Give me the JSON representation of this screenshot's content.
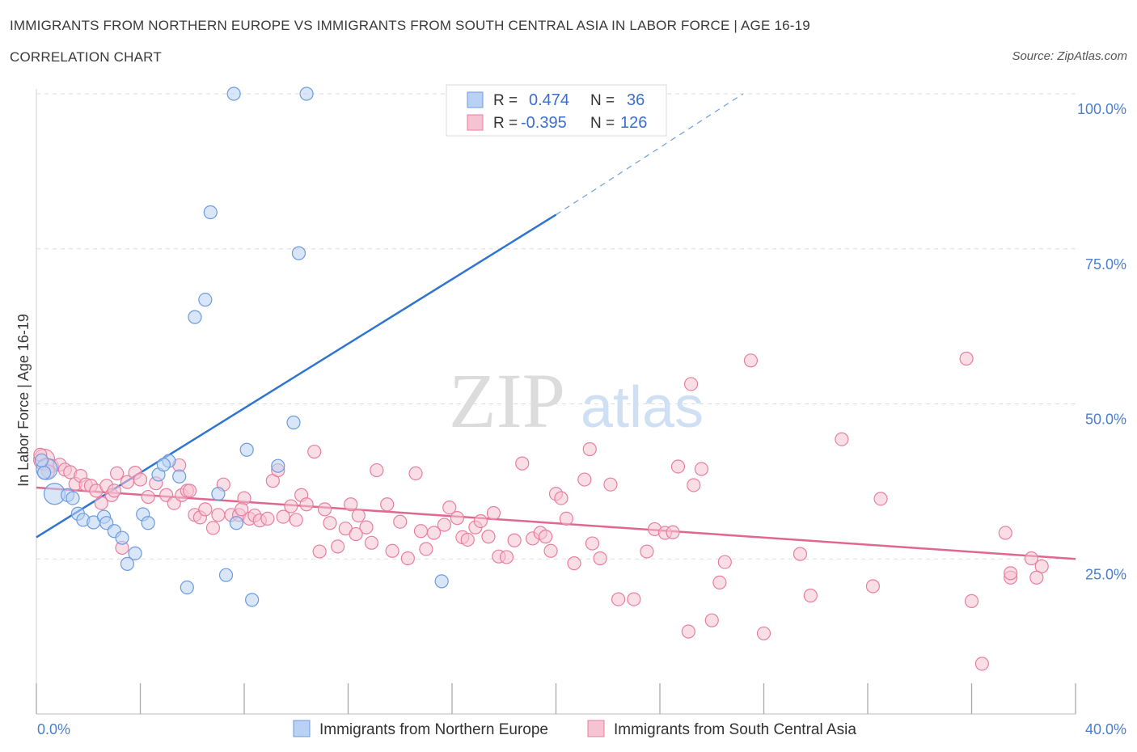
{
  "header": {
    "title": "IMMIGRANTS FROM NORTHERN EUROPE VS IMMIGRANTS FROM SOUTH CENTRAL ASIA IN LABOR FORCE | AGE 16-19",
    "subtitle": "CORRELATION CHART",
    "source": "Source: ZipAtlas.com"
  },
  "watermark": {
    "zip": "ZIP",
    "atlas": "atlas"
  },
  "colors": {
    "blue_fill": "#b9d2f3",
    "blue_stroke": "#6b9be0",
    "blue_line": "#2f74d0",
    "pink_fill": "#f6c3d2",
    "pink_stroke": "#e87ea0",
    "pink_line": "#e0678f",
    "grid": "#dddddd",
    "tick_text": "#4a7fd0"
  },
  "legend": {
    "blue": {
      "r_label": "R =",
      "r_value": "0.474",
      "n_label": "N =",
      "n_value": "36"
    },
    "pink": {
      "r_label": "R =",
      "r_value": "-0.395",
      "n_label": "N =",
      "n_value": "126"
    }
  },
  "chart_data": {
    "type": "scatter",
    "title": "IMMIGRANTS FROM NORTHERN EUROPE VS IMMIGRANTS FROM SOUTH CENTRAL ASIA IN LABOR FORCE | AGE 16-19",
    "xlabel": "",
    "ylabel": "In Labor Force | Age 16-19",
    "xlim": [
      0,
      40
    ],
    "ylim": [
      0,
      100
    ],
    "x_tick_labels": [
      "0.0%",
      "40.0%"
    ],
    "y_tick_labels": [
      "25.0%",
      "50.0%",
      "75.0%",
      "100.0%"
    ],
    "y_ticks": [
      25,
      50,
      75,
      100
    ],
    "grid": true,
    "legend_position": "top-center",
    "series": [
      {
        "name": "Immigrants from Northern Europe",
        "color": "#6b9be0",
        "trend": {
          "x": [
            0,
            20
          ],
          "y": [
            28.5,
            80.5
          ],
          "dashed_to": [
            27.2,
            100
          ]
        },
        "points": [
          [
            0.4,
            39.5
          ],
          [
            0.7,
            35.5
          ],
          [
            1.2,
            35.3
          ],
          [
            1.4,
            34.8
          ],
          [
            1.6,
            32.3
          ],
          [
            1.8,
            31.3
          ],
          [
            2.2,
            30.9
          ],
          [
            2.6,
            31.8
          ],
          [
            2.7,
            30.8
          ],
          [
            3.0,
            29.5
          ],
          [
            3.3,
            28.4
          ],
          [
            3.5,
            24.2
          ],
          [
            3.8,
            25.9
          ],
          [
            4.1,
            32.2
          ],
          [
            4.3,
            30.8
          ],
          [
            4.7,
            38.6
          ],
          [
            5.1,
            40.8
          ],
          [
            5.5,
            38.3
          ],
          [
            5.8,
            20.4
          ],
          [
            6.1,
            64.0
          ],
          [
            6.5,
            66.8
          ],
          [
            6.7,
            80.9
          ],
          [
            7.0,
            35.5
          ],
          [
            7.3,
            22.4
          ],
          [
            7.7,
            30.8
          ],
          [
            7.6,
            100.0
          ],
          [
            8.1,
            42.6
          ],
          [
            8.3,
            18.4
          ],
          [
            9.3,
            40.0
          ],
          [
            9.9,
            47.0
          ],
          [
            10.1,
            74.3
          ],
          [
            10.4,
            100.0
          ],
          [
            15.6,
            21.4
          ],
          [
            0.2,
            40.9
          ],
          [
            0.3,
            38.9
          ],
          [
            4.9,
            40.2
          ]
        ]
      },
      {
        "name": "Immigrants from South Central Asia",
        "color": "#e87ea0",
        "trend": {
          "x": [
            0,
            40
          ],
          "y": [
            36.5,
            25.0
          ]
        },
        "points": [
          [
            0.3,
            41.0
          ],
          [
            0.6,
            40.0
          ],
          [
            0.9,
            40.2
          ],
          [
            1.1,
            39.4
          ],
          [
            1.3,
            39.0
          ],
          [
            1.5,
            37.1
          ],
          [
            1.7,
            38.4
          ],
          [
            1.9,
            37.0
          ],
          [
            2.1,
            36.8
          ],
          [
            2.3,
            36.0
          ],
          [
            2.5,
            34.0
          ],
          [
            2.7,
            36.8
          ],
          [
            2.9,
            35.3
          ],
          [
            3.1,
            38.8
          ],
          [
            3.3,
            26.8
          ],
          [
            3.5,
            37.4
          ],
          [
            3.8,
            38.9
          ],
          [
            4.0,
            37.8
          ],
          [
            4.3,
            35.0
          ],
          [
            4.6,
            37.2
          ],
          [
            5.0,
            35.3
          ],
          [
            5.3,
            34.0
          ],
          [
            5.5,
            40.1
          ],
          [
            5.6,
            35.3
          ],
          [
            5.8,
            36.0
          ],
          [
            6.1,
            32.1
          ],
          [
            6.3,
            31.7
          ],
          [
            6.5,
            33.0
          ],
          [
            6.8,
            30.0
          ],
          [
            7.0,
            32.1
          ],
          [
            7.2,
            37.0
          ],
          [
            7.5,
            32.1
          ],
          [
            7.8,
            32.1
          ],
          [
            8.0,
            34.8
          ],
          [
            8.2,
            31.5
          ],
          [
            8.4,
            32.0
          ],
          [
            8.6,
            31.2
          ],
          [
            8.9,
            31.5
          ],
          [
            9.1,
            37.6
          ],
          [
            9.3,
            39.3
          ],
          [
            9.5,
            31.8
          ],
          [
            9.8,
            33.5
          ],
          [
            10.0,
            31.3
          ],
          [
            10.2,
            35.3
          ],
          [
            10.4,
            33.8
          ],
          [
            10.7,
            42.3
          ],
          [
            10.9,
            26.2
          ],
          [
            11.1,
            33.0
          ],
          [
            11.3,
            30.8
          ],
          [
            11.6,
            27.0
          ],
          [
            11.9,
            29.9
          ],
          [
            12.1,
            33.8
          ],
          [
            12.4,
            32.0
          ],
          [
            12.7,
            30.1
          ],
          [
            12.9,
            27.6
          ],
          [
            13.1,
            39.3
          ],
          [
            13.5,
            33.8
          ],
          [
            13.7,
            26.3
          ],
          [
            14.0,
            31.0
          ],
          [
            14.3,
            25.1
          ],
          [
            14.6,
            38.8
          ],
          [
            14.8,
            29.5
          ],
          [
            15.0,
            26.6
          ],
          [
            15.3,
            29.2
          ],
          [
            15.7,
            30.5
          ],
          [
            15.9,
            33.3
          ],
          [
            16.2,
            31.6
          ],
          [
            16.4,
            28.5
          ],
          [
            16.6,
            28.1
          ],
          [
            16.9,
            30.1
          ],
          [
            17.1,
            31.1
          ],
          [
            17.4,
            28.6
          ],
          [
            17.6,
            32.4
          ],
          [
            17.8,
            25.4
          ],
          [
            18.1,
            25.3
          ],
          [
            18.7,
            40.4
          ],
          [
            19.1,
            28.3
          ],
          [
            19.4,
            29.2
          ],
          [
            19.6,
            28.6
          ],
          [
            19.8,
            26.3
          ],
          [
            20.0,
            35.5
          ],
          [
            20.2,
            34.8
          ],
          [
            20.4,
            31.5
          ],
          [
            20.7,
            24.3
          ],
          [
            21.1,
            37.8
          ],
          [
            21.3,
            42.7
          ],
          [
            21.4,
            27.5
          ],
          [
            21.7,
            25.1
          ],
          [
            22.1,
            37.0
          ],
          [
            22.4,
            18.5
          ],
          [
            23.0,
            18.5
          ],
          [
            23.5,
            26.2
          ],
          [
            23.8,
            29.8
          ],
          [
            24.2,
            29.2
          ],
          [
            24.5,
            29.3
          ],
          [
            24.7,
            39.9
          ],
          [
            25.1,
            13.3
          ],
          [
            25.2,
            53.2
          ],
          [
            25.3,
            36.9
          ],
          [
            25.6,
            39.5
          ],
          [
            26.0,
            15.1
          ],
          [
            26.3,
            21.2
          ],
          [
            26.5,
            24.5
          ],
          [
            27.5,
            57.0
          ],
          [
            28.0,
            13.0
          ],
          [
            29.4,
            25.8
          ],
          [
            29.8,
            19.1
          ],
          [
            31.0,
            44.3
          ],
          [
            32.2,
            20.6
          ],
          [
            32.5,
            34.7
          ],
          [
            35.8,
            57.3
          ],
          [
            36.0,
            18.2
          ],
          [
            36.4,
            8.1
          ],
          [
            37.3,
            29.2
          ],
          [
            37.5,
            22.0
          ],
          [
            37.5,
            22.7
          ],
          [
            38.3,
            25.1
          ],
          [
            38.7,
            23.8
          ],
          [
            38.5,
            22.0
          ],
          [
            0.15,
            41.8
          ],
          [
            0.45,
            39.1
          ],
          [
            3.0,
            36.0
          ],
          [
            5.9,
            36.0
          ],
          [
            7.9,
            33.0
          ],
          [
            18.4,
            28.0
          ],
          [
            12.3,
            29.0
          ]
        ]
      }
    ]
  },
  "bottom_legend": {
    "blue_label": "Immigrants from Northern Europe",
    "pink_label": "Immigrants from South Central Asia"
  }
}
